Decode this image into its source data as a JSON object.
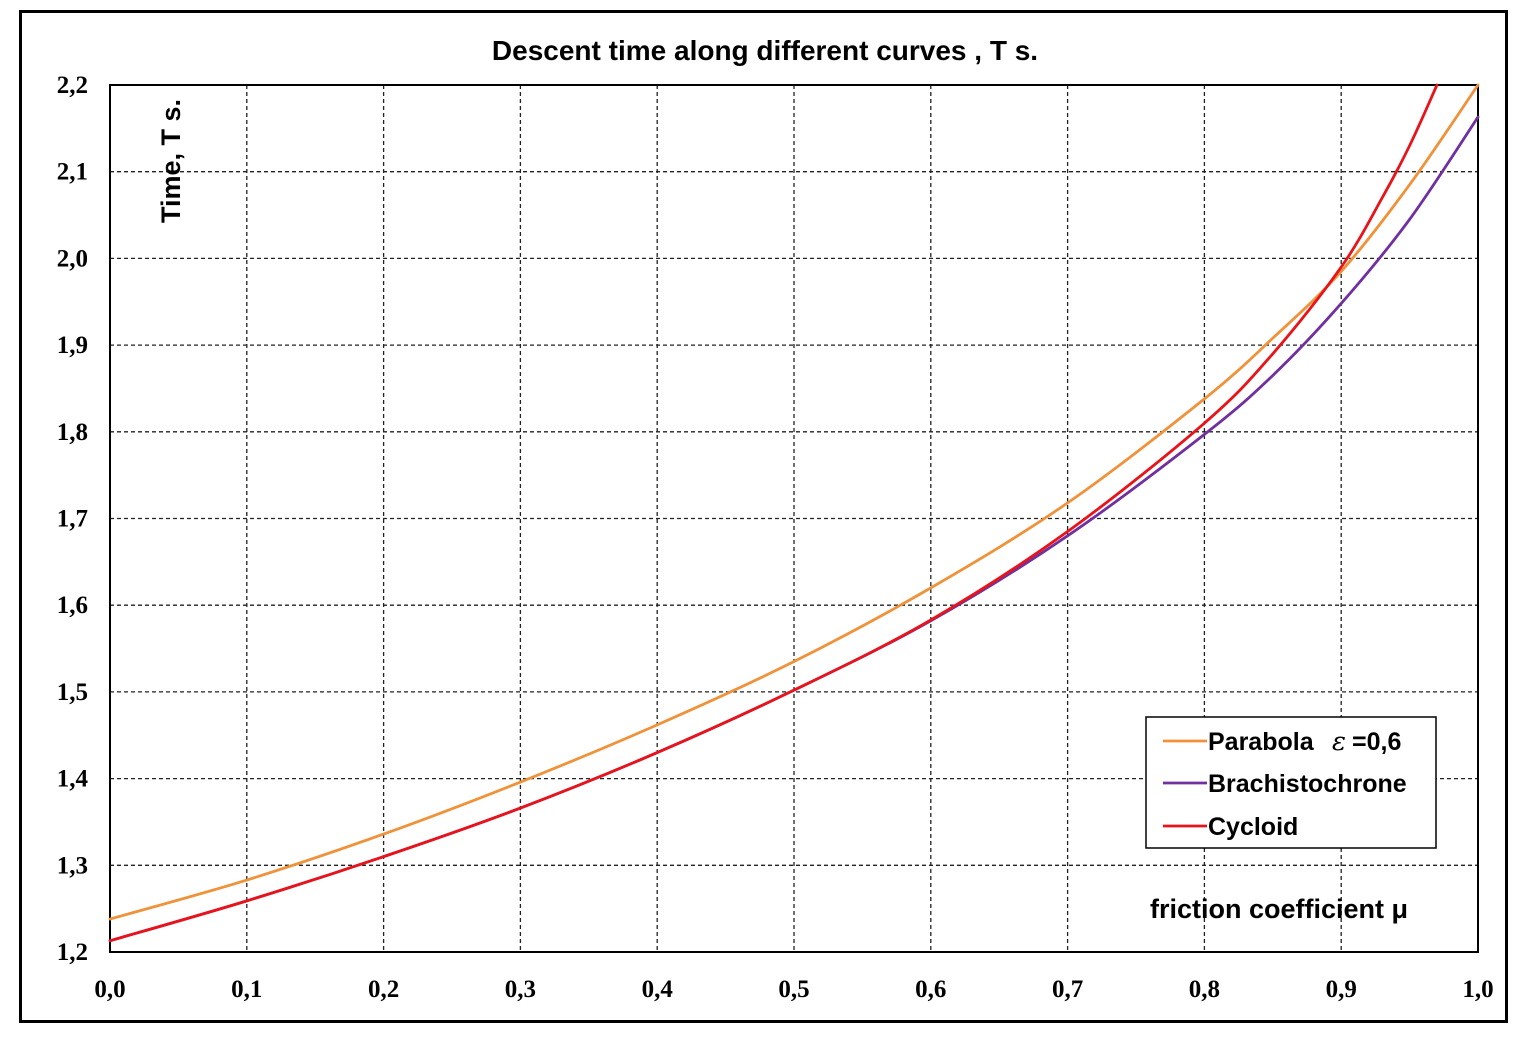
{
  "chart_data": {
    "type": "line",
    "title": "Descent time along different curves , T s.",
    "xlabel": "friction coefficient μ",
    "ylabel": "Time, T s.",
    "xlim": [
      0.0,
      1.0
    ],
    "ylim": [
      1.2,
      2.2
    ],
    "x_ticks": [
      "0,0",
      "0,1",
      "0,2",
      "0,3",
      "0,4",
      "0,5",
      "0,6",
      "0,7",
      "0,8",
      "0,9",
      "1,0"
    ],
    "y_ticks": [
      "1,2",
      "1,3",
      "1,4",
      "1,5",
      "1,6",
      "1,7",
      "1,8",
      "1,9",
      "2,0",
      "2,1",
      "2,2"
    ],
    "grid": true,
    "legend_position": "bottom-right",
    "series": [
      {
        "name": "Parabola",
        "legend_suffix": "=0,6",
        "legend_symbol": "ε",
        "color": "#f0923a",
        "x": [
          0.0,
          0.1,
          0.2,
          0.3,
          0.4,
          0.5,
          0.6,
          0.7,
          0.8,
          0.85,
          0.9,
          0.95,
          1.0
        ],
        "y": [
          1.238,
          1.283,
          1.336,
          1.396,
          1.462,
          1.535,
          1.62,
          1.718,
          1.838,
          1.908,
          1.985,
          2.085,
          2.2
        ]
      },
      {
        "name": "Brachistochrone",
        "color": "#7030a0",
        "x": [
          0.0,
          0.1,
          0.2,
          0.3,
          0.4,
          0.5,
          0.6,
          0.7,
          0.8,
          0.85,
          0.9,
          0.95,
          1.0
        ],
        "y": [
          1.213,
          1.259,
          1.31,
          1.366,
          1.43,
          1.502,
          1.582,
          1.68,
          1.797,
          1.865,
          1.948,
          2.045,
          2.163
        ]
      },
      {
        "name": "Cycloid",
        "color": "#e8141a",
        "x": [
          0.0,
          0.1,
          0.2,
          0.3,
          0.4,
          0.5,
          0.6,
          0.7,
          0.8,
          0.85,
          0.9,
          0.93,
          0.95,
          0.97
        ],
        "y": [
          1.213,
          1.259,
          1.31,
          1.366,
          1.43,
          1.502,
          1.583,
          1.685,
          1.81,
          1.89,
          1.99,
          2.07,
          2.13,
          2.2
        ]
      }
    ]
  }
}
